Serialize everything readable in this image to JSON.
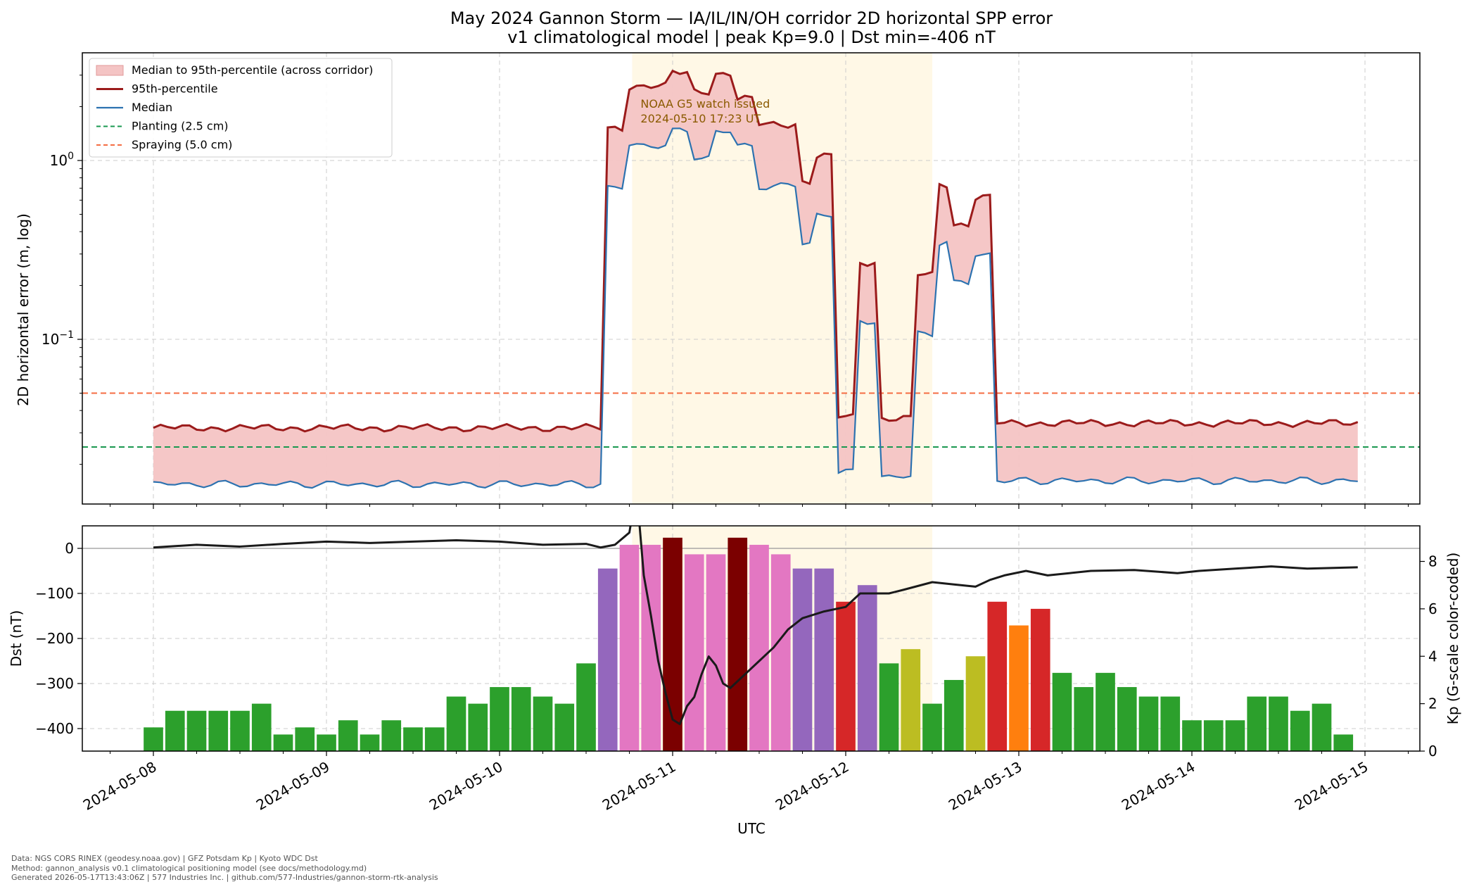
{
  "title_line1": "May 2024 Gannon Storm — IA/IL/IN/OH corridor 2D horizontal SPP error",
  "title_line2": "v1 climatological model | peak Kp=9.0 | Dst min=-406 nT",
  "xlabel": "UTC",
  "footer": [
    "Data: NGS CORS RINEX (geodesy.noaa.gov) | GFZ Potsdam Kp | Kyoto WDC Dst",
    "Method: gannon_analysis v0.1 climatological positioning model (see docs/methodology.md)",
    "Generated 2026-05-17T13:43:06Z | 577 Industries Inc. | github.com/577-Industries/gannon-storm-rtk-analysis"
  ],
  "chart_data": [
    {
      "type": "area",
      "name": "error-panel",
      "ylabel": "2D horizontal error (m, log)",
      "yscale": "log",
      "ylim": [
        0.012,
        4.0
      ],
      "xlim": [
        "2024-05-07T18:00",
        "2024-05-15T07:00"
      ],
      "x_unit": "hours since 2024-05-08T00:00 UTC",
      "grid": true,
      "legend_position": "top-left",
      "legend": [
        {
          "label": "Median to 95th-percentile (across corridor)",
          "kind": "fill",
          "color": "#f4c4c4"
        },
        {
          "label": "95th-percentile",
          "kind": "line",
          "color": "#9b1b1b"
        },
        {
          "label": "Median",
          "kind": "line",
          "color": "#2c72b0"
        },
        {
          "label": "Planting (2.5 cm)",
          "kind": "dash",
          "color": "#1a9850"
        },
        {
          "label": "Spraying (5.0 cm)",
          "kind": "dash",
          "color": "#f46d43"
        }
      ],
      "thresholds": [
        {
          "label": "Planting (2.5 cm)",
          "value": 0.025,
          "color": "#1a9850"
        },
        {
          "label": "Spraying (5.0 cm)",
          "value": 0.05,
          "color": "#f46d43"
        }
      ],
      "storm_window": [
        "2024-05-10T17:23",
        "2024-05-12T12:00"
      ],
      "annotation": {
        "text1": "NOAA G5 watch issued",
        "text2": "2024-05-10 17:23 UT",
        "color": "#8a5a00"
      },
      "steps_hours": [
        {
          "from": 0,
          "to": 62,
          "p95": 0.032,
          "median": 0.0155
        },
        {
          "from": 63,
          "to": 65,
          "p95": 1.52,
          "median": 0.7
        },
        {
          "from": 66,
          "to": 71,
          "p95": 2.6,
          "median": 1.22
        },
        {
          "from": 72,
          "to": 74,
          "p95": 3.1,
          "median": 1.45
        },
        {
          "from": 75,
          "to": 77,
          "p95": 2.45,
          "median": 1.05
        },
        {
          "from": 78,
          "to": 80,
          "p95": 3.05,
          "median": 1.45
        },
        {
          "from": 81,
          "to": 83,
          "p95": 2.2,
          "median": 1.2
        },
        {
          "from": 84,
          "to": 89,
          "p95": 1.6,
          "median": 0.72
        },
        {
          "from": 90,
          "to": 91,
          "p95": 0.76,
          "median": 0.345
        },
        {
          "from": 92,
          "to": 94,
          "p95": 1.05,
          "median": 0.5
        },
        {
          "from": 95,
          "to": 97,
          "p95": 0.037,
          "median": 0.018
        },
        {
          "from": 98,
          "to": 100,
          "p95": 0.27,
          "median": 0.127
        },
        {
          "from": 101,
          "to": 105,
          "p95": 0.036,
          "median": 0.017
        },
        {
          "from": 106,
          "to": 108,
          "p95": 0.23,
          "median": 0.108
        },
        {
          "from": 109,
          "to": 110,
          "p95": 0.74,
          "median": 0.35
        },
        {
          "from": 111,
          "to": 113,
          "p95": 0.44,
          "median": 0.205
        },
        {
          "from": 114,
          "to": 116,
          "p95": 0.62,
          "median": 0.3
        },
        {
          "from": 117,
          "to": 167,
          "p95": 0.034,
          "median": 0.0162
        }
      ]
    },
    {
      "type": "bar",
      "name": "kp-dst-panel",
      "ylabel": "Dst (nT)",
      "ylabel_right": "Kp (G-scale color-coded)",
      "dst_ylim": [
        -450,
        50
      ],
      "kp_ylim": [
        0,
        9.5
      ],
      "kp_interval_hours": 3,
      "kp": [
        1.0,
        1.7,
        1.7,
        1.7,
        1.7,
        2.0,
        0.7,
        1.0,
        0.7,
        1.3,
        0.7,
        1.3,
        1.0,
        1.0,
        2.3,
        2.0,
        2.7,
        2.7,
        2.3,
        2.0,
        3.7,
        7.7,
        8.7,
        8.7,
        9.0,
        8.3,
        8.3,
        9.0,
        8.7,
        8.3,
        7.7,
        7.7,
        6.3,
        7.0,
        3.7,
        4.3,
        2.0,
        3.0,
        4.0,
        6.3,
        5.3,
        6.0,
        3.3,
        2.7,
        3.3,
        2.7,
        2.3,
        2.3,
        1.3,
        1.3,
        1.3,
        2.3,
        2.3,
        1.7,
        2.0,
        0.7
      ],
      "g_scale_colors": {
        "g0": "#2ca02c",
        "kp4": "#bcbd22",
        "g1": "#ff7f0e",
        "g2": "#d62728",
        "g3": "#9467bd",
        "g4": "#e377c2",
        "g5": "#7b0000"
      },
      "dst_hourly_points": [
        [
          0,
          2
        ],
        [
          6,
          8
        ],
        [
          12,
          4
        ],
        [
          18,
          10
        ],
        [
          24,
          15
        ],
        [
          30,
          12
        ],
        [
          36,
          15
        ],
        [
          42,
          18
        ],
        [
          48,
          15
        ],
        [
          54,
          8
        ],
        [
          60,
          10
        ],
        [
          62,
          2
        ],
        [
          64,
          8
        ],
        [
          66,
          35
        ],
        [
          67,
          130
        ],
        [
          68,
          -60
        ],
        [
          69,
          -150
        ],
        [
          70,
          -250
        ],
        [
          71,
          -320
        ],
        [
          72,
          -380
        ],
        [
          73,
          -390
        ],
        [
          74,
          -350
        ],
        [
          75,
          -330
        ],
        [
          76,
          -280
        ],
        [
          77,
          -240
        ],
        [
          78,
          -260
        ],
        [
          79,
          -300
        ],
        [
          80,
          -310
        ],
        [
          82,
          -280
        ],
        [
          84,
          -250
        ],
        [
          86,
          -220
        ],
        [
          88,
          -180
        ],
        [
          90,
          -155
        ],
        [
          93,
          -140
        ],
        [
          96,
          -130
        ],
        [
          98,
          -100
        ],
        [
          102,
          -100
        ],
        [
          104,
          -92
        ],
        [
          108,
          -75
        ],
        [
          111,
          -80
        ],
        [
          114,
          -85
        ],
        [
          116,
          -70
        ],
        [
          118,
          -60
        ],
        [
          121,
          -50
        ],
        [
          124,
          -60
        ],
        [
          127,
          -55
        ],
        [
          130,
          -50
        ],
        [
          136,
          -48
        ],
        [
          142,
          -55
        ],
        [
          145,
          -50
        ],
        [
          150,
          -45
        ],
        [
          155,
          -40
        ],
        [
          160,
          -45
        ],
        [
          167,
          -42
        ]
      ],
      "dst_color": "#1a1a1a"
    }
  ],
  "axes": {
    "x_ticks": [
      "2024-05-08",
      "2024-05-09",
      "2024-05-10",
      "2024-05-11",
      "2024-05-12",
      "2024-05-13",
      "2024-05-14",
      "2024-05-15"
    ],
    "top_y_ticks": [
      {
        "base": "10",
        "exp": "0"
      },
      {
        "base": "10",
        "exp": "−1"
      }
    ],
    "dst_ticks": [
      "0",
      "−100",
      "−200",
      "−300",
      "−400"
    ],
    "kp_ticks": [
      "0",
      "2",
      "4",
      "6",
      "8"
    ]
  }
}
